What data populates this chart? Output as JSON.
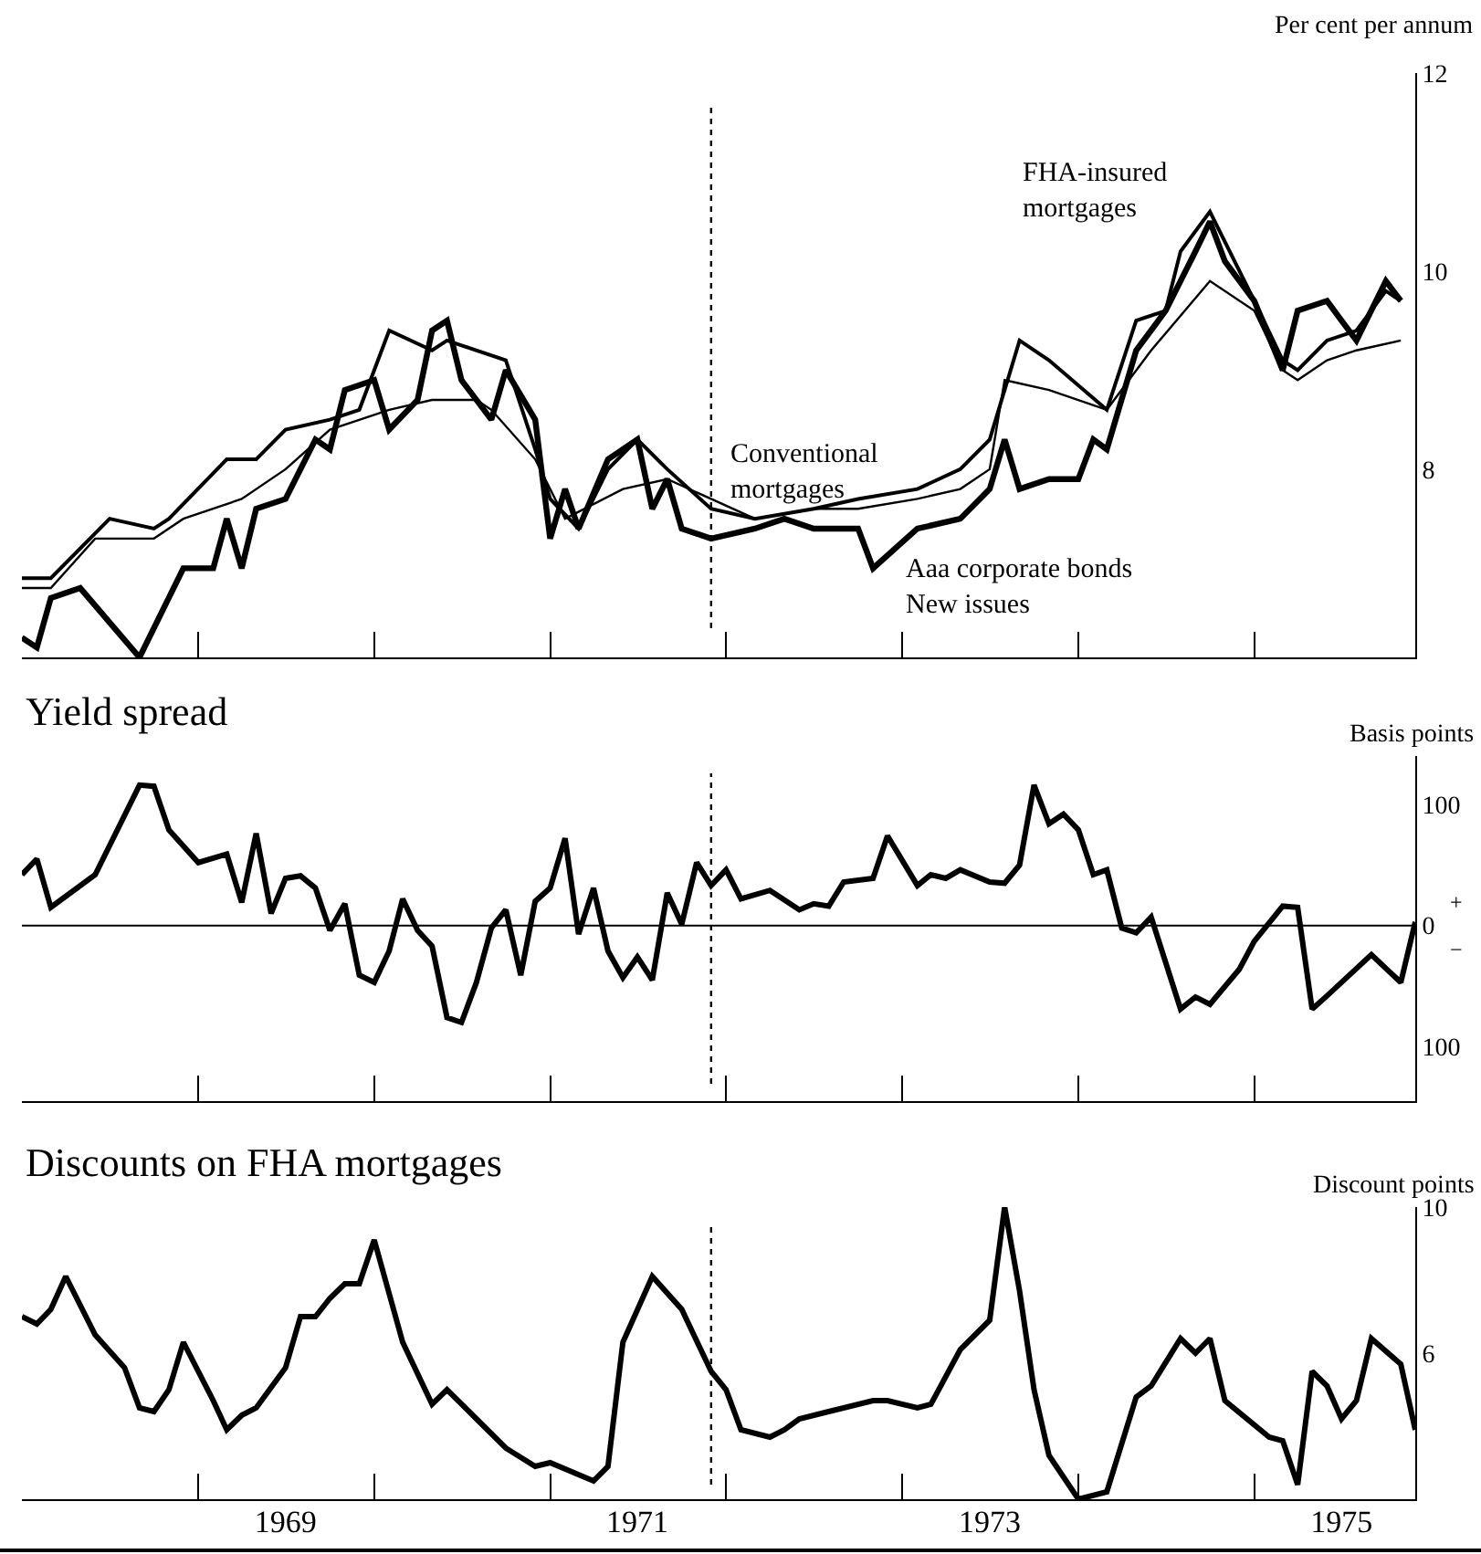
{
  "chart_data": [
    {
      "type": "line",
      "ylabel": "Per cent per annum",
      "xlim": [
        "1968-01",
        "1975-12"
      ],
      "ylim": [
        6.1,
        12
      ],
      "yticks": [
        8,
        10,
        12
      ],
      "tick_labels": "y",
      "xticks": [
        {
          "value": "1969-01",
          "label": null
        },
        {
          "value": "1970-01",
          "label": null
        },
        {
          "value": "1971-01",
          "label": null
        },
        {
          "value": "1972-01",
          "label": null
        },
        {
          "value": "1973-01",
          "label": null
        },
        {
          "value": "1974-01",
          "label": null
        },
        {
          "value": "1975-01",
          "label": null
        }
      ],
      "ref_lines": [
        {
          "axis": "x",
          "value": "1971-12",
          "line_style": "dotted",
          "color": "#000000"
        }
      ],
      "series": [
        {
          "name": "Conventional mortgages",
          "color": "#000000",
          "x": [
            "1968-01",
            "1968-03",
            "1968-06",
            "1968-10",
            "1968-12",
            "1969-04",
            "1969-07",
            "1969-10",
            "1970-02",
            "1970-05",
            "1970-08",
            "1970-09",
            "1970-12",
            "1971-02",
            "1971-06",
            "1971-09",
            "1971-12",
            "1972-03",
            "1972-07",
            "1972-10",
            "1973-02",
            "1973-05",
            "1973-07",
            "1973-08",
            "1973-11",
            "1974-03",
            "1974-06",
            "1974-10",
            "1975-01",
            "1975-03",
            "1975-04",
            "1975-06",
            "1975-08",
            "1975-11"
          ],
          "values": [
            6.8,
            6.8,
            7.3,
            7.3,
            7.5,
            7.7,
            8.0,
            8.4,
            8.6,
            8.7,
            8.7,
            8.6,
            8.1,
            7.5,
            7.8,
            7.9,
            7.7,
            7.5,
            7.6,
            7.6,
            7.7,
            7.8,
            8.0,
            8.9,
            8.8,
            8.6,
            9.2,
            9.9,
            9.6,
            9.0,
            8.9,
            9.1,
            9.2,
            9.3
          ]
        },
        {
          "name": "FHA-insured mortgages",
          "color": "#000000",
          "x": [
            "1968-01",
            "1968-03",
            "1968-07",
            "1968-10",
            "1968-11",
            "1969-03",
            "1969-05",
            "1969-07",
            "1969-10",
            "1969-12",
            "1970-02",
            "1970-05",
            "1970-06",
            "1970-10",
            "1970-12",
            "1971-01",
            "1971-03",
            "1971-05",
            "1971-07",
            "1971-09",
            "1971-12",
            "1972-03",
            "1972-07",
            "1972-10",
            "1973-02",
            "1973-05",
            "1973-07",
            "1973-09",
            "1973-11",
            "1974-03",
            "1974-05",
            "1974-07",
            "1974-08",
            "1974-10",
            "1975-01",
            "1975-03",
            "1975-04",
            "1975-06",
            "1975-08",
            "1975-10",
            "1975-11"
          ],
          "values": [
            6.9,
            6.9,
            7.5,
            7.4,
            7.5,
            8.1,
            8.1,
            8.4,
            8.5,
            8.6,
            9.4,
            9.2,
            9.3,
            9.1,
            8.2,
            7.7,
            7.4,
            8.0,
            8.3,
            8.0,
            7.6,
            7.5,
            7.6,
            7.7,
            7.8,
            8.0,
            8.3,
            9.3,
            9.1,
            8.6,
            9.5,
            9.6,
            10.2,
            10.6,
            9.7,
            9.1,
            9.0,
            9.3,
            9.4,
            9.8,
            9.7
          ]
        },
        {
          "name": "Aaa corporate bonds New issues",
          "color": "#000000",
          "x": [
            "1968-01",
            "1968-02",
            "1968-03",
            "1968-05",
            "1968-09",
            "1968-12",
            "1969-02",
            "1969-03",
            "1969-04",
            "1969-05",
            "1969-07",
            "1969-09",
            "1969-10",
            "1969-11",
            "1970-01",
            "1970-02",
            "1970-04",
            "1970-05",
            "1970-06",
            "1970-07",
            "1970-09",
            "1970-10",
            "1970-12",
            "1971-01",
            "1971-02",
            "1971-03",
            "1971-05",
            "1971-07",
            "1971-08",
            "1971-09",
            "1971-10",
            "1971-12",
            "1972-03",
            "1972-05",
            "1972-07",
            "1972-08",
            "1972-10",
            "1972-11",
            "1973-02",
            "1973-05",
            "1973-07",
            "1973-08",
            "1973-09",
            "1973-11",
            "1974-01",
            "1974-02",
            "1974-03",
            "1974-05",
            "1974-07",
            "1974-09",
            "1974-10",
            "1974-11",
            "1975-01",
            "1975-03",
            "1975-04",
            "1975-06",
            "1975-07",
            "1975-08",
            "1975-10",
            "1975-11"
          ],
          "values": [
            6.3,
            6.2,
            6.7,
            6.8,
            6.1,
            7.0,
            7.0,
            7.5,
            7.0,
            7.6,
            7.7,
            8.3,
            8.2,
            8.8,
            8.9,
            8.4,
            8.7,
            9.4,
            9.5,
            8.9,
            8.5,
            9.0,
            8.5,
            7.3,
            7.8,
            7.4,
            8.1,
            8.3,
            7.6,
            7.9,
            7.4,
            7.3,
            7.4,
            7.5,
            7.4,
            7.4,
            7.4,
            7.0,
            7.4,
            7.5,
            7.8,
            8.3,
            7.8,
            7.9,
            7.9,
            8.3,
            8.2,
            9.2,
            9.6,
            10.2,
            10.5,
            10.1,
            9.7,
            9.0,
            9.6,
            9.7,
            9.5,
            9.3,
            9.9,
            9.7
          ]
        }
      ]
    },
    {
      "type": "line",
      "title": "Yield spread",
      "ylabel": "Basis points",
      "xlim": [
        "1968-01",
        "1975-12"
      ],
      "ylim": [
        -145,
        140
      ],
      "tick_labels": "y",
      "yticks": [
        {
          "value": 100,
          "label": "100"
        },
        0,
        {
          "value": -100,
          "label": "100"
        }
      ],
      "xticks": [
        {
          "value": "1969-01",
          "label": null
        },
        {
          "value": "1970-01",
          "label": null
        },
        {
          "value": "1971-01",
          "label": null
        },
        {
          "value": "1972-01",
          "label": null
        },
        {
          "value": "1973-01",
          "label": null
        },
        {
          "value": "1974-01",
          "label": null
        },
        {
          "value": "1975-01",
          "label": null
        }
      ],
      "annotations": [
        "+",
        "−"
      ],
      "ref_lines": [
        {
          "axis": "y",
          "value": 0,
          "line_style": "solid",
          "color": "#000000"
        },
        {
          "axis": "x",
          "value": "1971-12",
          "line_style": "dotted",
          "color": "#000000"
        }
      ],
      "series": [
        {
          "color": "#000000",
          "x": [
            "1968-01",
            "1968-02",
            "1968-03",
            "1968-06",
            "1968-09",
            "1968-10",
            "1968-11",
            "1969-01",
            "1969-03",
            "1969-04",
            "1969-05",
            "1969-06",
            "1969-07",
            "1969-08",
            "1969-09",
            "1969-10",
            "1969-11",
            "1969-12",
            "1970-01",
            "1970-02",
            "1970-03",
            "1970-04",
            "1970-05",
            "1970-06",
            "1970-07",
            "1970-08",
            "1970-09",
            "1970-10",
            "1970-11",
            "1970-12",
            "1971-01",
            "1971-02",
            "1971-03",
            "1971-04",
            "1971-05",
            "1971-06",
            "1971-07",
            "1971-08",
            "1971-09",
            "1971-10",
            "1971-11",
            "1971-12",
            "1972-01",
            "1972-02",
            "1972-04",
            "1972-06",
            "1972-07",
            "1972-08",
            "1972-09",
            "1972-11",
            "1972-12",
            "1973-02",
            "1973-03",
            "1973-04",
            "1973-05",
            "1973-07",
            "1973-08",
            "1973-09",
            "1973-10",
            "1973-11",
            "1973-12",
            "1974-01",
            "1974-02",
            "1974-03",
            "1974-04",
            "1974-05",
            "1974-06",
            "1974-08",
            "1974-09",
            "1974-10",
            "1974-12",
            "1975-01",
            "1975-03",
            "1975-04",
            "1975-05",
            "1975-06",
            "1975-09",
            "1975-11",
            "1975-12"
          ],
          "values": [
            42,
            55,
            15,
            42,
            116,
            115,
            79,
            52,
            59,
            19,
            76,
            10,
            39,
            41,
            31,
            -4,
            18,
            -41,
            -47,
            -21,
            22,
            -4,
            -17,
            -76,
            -80,
            -47,
            -2,
            13,
            -41,
            20,
            31,
            72,
            -7,
            31,
            -21,
            -43,
            -26,
            -45,
            27,
            1,
            52,
            33,
            46,
            22,
            29,
            13,
            18,
            16,
            36,
            39,
            74,
            33,
            42,
            39,
            46,
            36,
            35,
            50,
            116,
            84,
            92,
            79,
            42,
            46,
            -2,
            -6,
            7,
            -69,
            -59,
            -65,
            -36,
            -13,
            16,
            15,
            -69,
            -58,
            -24,
            -47,
            3
          ]
        }
      ]
    },
    {
      "type": "line",
      "title": "Discounts on FHA mortgages",
      "ylabel": "Discount points",
      "xlim": [
        "1968-01",
        "1975-12"
      ],
      "ylim": [
        2.0,
        10
      ],
      "yticks": [
        6,
        10
      ],
      "xticks": [
        {
          "value": "1969-01",
          "label": null
        },
        {
          "value": "1969-07",
          "label": "1969"
        },
        {
          "value": "1970-01",
          "label": null
        },
        {
          "value": "1971-01",
          "label": null
        },
        {
          "value": "1971-07",
          "label": "1971"
        },
        {
          "value": "1972-01",
          "label": null
        },
        {
          "value": "1973-01",
          "label": null
        },
        {
          "value": "1973-07",
          "label": "1973"
        },
        {
          "value": "1974-01",
          "label": null
        },
        {
          "value": "1975-01",
          "label": null
        },
        {
          "value": "1975-07",
          "label": "1975"
        }
      ],
      "ref_lines": [
        {
          "axis": "x",
          "value": "1971-12",
          "line_style": "dotted",
          "color": "#000000"
        }
      ],
      "series": [
        {
          "color": "#000000",
          "x": [
            "1968-01",
            "1968-02",
            "1968-03",
            "1968-04",
            "1968-06",
            "1968-08",
            "1968-09",
            "1968-10",
            "1968-11",
            "1968-12",
            "1969-02",
            "1969-03",
            "1969-04",
            "1969-05",
            "1969-07",
            "1969-08",
            "1969-09",
            "1969-10",
            "1969-11",
            "1969-12",
            "1970-01",
            "1970-03",
            "1970-05",
            "1970-06",
            "1970-08",
            "1970-10",
            "1970-12",
            "1971-01",
            "1971-04",
            "1971-05",
            "1971-06",
            "1971-08",
            "1971-10",
            "1971-12",
            "1972-01",
            "1972-02",
            "1972-04",
            "1972-05",
            "1972-06",
            "1972-08",
            "1972-11",
            "1972-12",
            "1973-02",
            "1973-03",
            "1973-05",
            "1973-07",
            "1973-08",
            "1973-09",
            "1973-10",
            "1973-11",
            "1974-01",
            "1974-03",
            "1974-05",
            "1974-06",
            "1974-08",
            "1974-09",
            "1974-10",
            "1974-11",
            "1975-02",
            "1975-03",
            "1975-04",
            "1975-05",
            "1975-06",
            "1975-07",
            "1975-08",
            "1975-09",
            "1975-11",
            "1975-12"
          ],
          "values": [
            7.0,
            6.8,
            7.2,
            8.1,
            6.5,
            5.6,
            4.5,
            4.4,
            5.0,
            6.3,
            4.7,
            3.9,
            4.3,
            4.5,
            5.6,
            7.0,
            7.0,
            7.5,
            7.9,
            7.9,
            9.1,
            6.3,
            4.6,
            5.0,
            4.2,
            3.4,
            2.9,
            3.0,
            2.5,
            2.9,
            6.3,
            8.1,
            7.2,
            5.5,
            5.0,
            3.9,
            3.7,
            3.9,
            4.2,
            4.4,
            4.7,
            4.7,
            4.5,
            4.6,
            6.1,
            6.9,
            10.0,
            7.7,
            5.0,
            3.2,
            2.0,
            2.2,
            4.8,
            5.1,
            6.4,
            6.0,
            6.4,
            4.7,
            3.7,
            3.6,
            2.4,
            5.5,
            5.1,
            4.2,
            4.7,
            6.4,
            5.7,
            3.9
          ]
        }
      ]
    }
  ]
}
